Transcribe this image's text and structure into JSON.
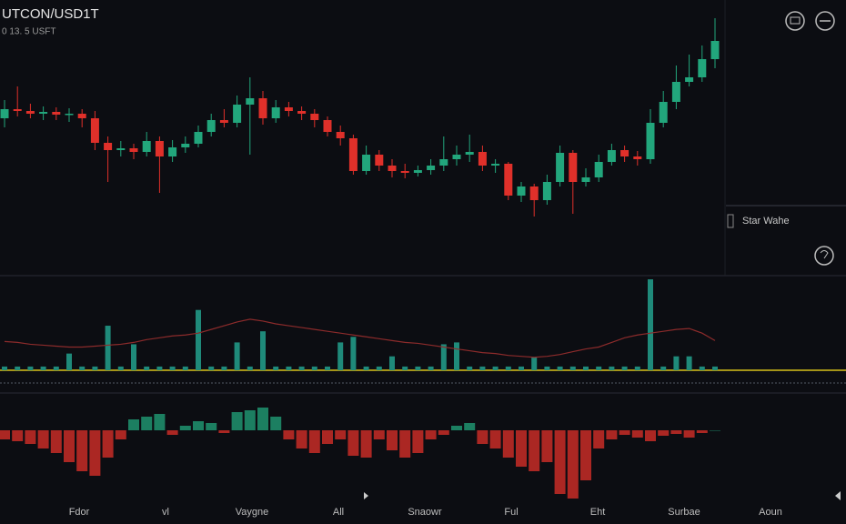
{
  "chart_data": {
    "type": "candlestick",
    "title": "UTCON/USD1T",
    "subtitle": "0 13. 5 USFT",
    "legend_label": "Star Wahe",
    "x_labels": [
      "Fdor",
      "vl",
      "Vaygne",
      "All",
      "Snaowr",
      "Ful",
      "Eht",
      "Surbae",
      "Aoun"
    ],
    "up_color": "#22a67c",
    "down_color": "#e0302a",
    "ylim": [
      0,
      300
    ],
    "open": [
      170,
      180,
      178,
      175,
      177,
      174,
      175,
      170,
      143,
      135,
      137,
      133,
      145,
      128,
      138,
      142,
      155,
      168,
      165,
      185,
      192,
      170,
      182,
      178,
      175,
      168,
      155,
      148,
      112,
      130,
      118,
      112,
      110,
      113,
      118,
      125,
      130,
      133,
      118,
      120,
      85,
      95,
      80,
      100,
      132,
      100,
      105,
      122,
      135,
      128,
      125,
      165,
      188,
      210,
      215,
      235
    ],
    "high": [
      190,
      205,
      186,
      183,
      182,
      181,
      180,
      178,
      150,
      145,
      142,
      155,
      150,
      146,
      150,
      162,
      175,
      180,
      195,
      215,
      200,
      190,
      188,
      183,
      180,
      172,
      162,
      152,
      140,
      135,
      125,
      120,
      118,
      125,
      150,
      140,
      152,
      140,
      125,
      122,
      100,
      98,
      108,
      140,
      135,
      115,
      130,
      142,
      140,
      134,
      180,
      200,
      228,
      240,
      250,
      280
    ],
    "low": [
      160,
      172,
      170,
      168,
      168,
      166,
      160,
      135,
      100,
      128,
      125,
      128,
      88,
      122,
      132,
      138,
      150,
      160,
      160,
      130,
      163,
      165,
      172,
      168,
      160,
      150,
      140,
      108,
      108,
      112,
      105,
      104,
      106,
      108,
      112,
      118,
      122,
      112,
      110,
      80,
      78,
      62,
      75,
      95,
      65,
      95,
      100,
      118,
      122,
      118,
      120,
      160,
      180,
      205,
      210,
      225
    ],
    "close": [
      180,
      178,
      175,
      177,
      174,
      175,
      170,
      143,
      135,
      137,
      133,
      145,
      128,
      138,
      142,
      155,
      168,
      165,
      185,
      192,
      170,
      182,
      178,
      175,
      168,
      155,
      148,
      112,
      130,
      118,
      112,
      110,
      113,
      118,
      125,
      130,
      133,
      118,
      120,
      85,
      95,
      80,
      100,
      132,
      100,
      105,
      122,
      135,
      128,
      125,
      165,
      188,
      210,
      215,
      235,
      255
    ],
    "volume_lim": [
      0,
      100
    ],
    "volume_color": "#1f8a7a",
    "volume": [
      4,
      4,
      4,
      4,
      4,
      18,
      4,
      4,
      48,
      4,
      28,
      4,
      4,
      4,
      4,
      65,
      4,
      4,
      30,
      4,
      42,
      4,
      4,
      4,
      4,
      4,
      30,
      36,
      4,
      4,
      15,
      4,
      4,
      4,
      28,
      30,
      4,
      4,
      4,
      4,
      4,
      14,
      4,
      4,
      4,
      4,
      4,
      4,
      4,
      4,
      98,
      4,
      15,
      15,
      4,
      4
    ],
    "volume_ma_color": "#8c2b2b",
    "volume_ma": [
      31,
      30,
      28,
      27,
      26,
      25,
      25,
      26,
      27,
      28,
      30,
      33,
      35,
      37,
      38,
      40,
      44,
      48,
      52,
      55,
      53,
      50,
      48,
      46,
      44,
      42,
      40,
      38,
      36,
      34,
      32,
      30,
      29,
      27,
      25,
      23,
      21,
      19,
      18,
      16,
      15,
      14,
      15,
      17,
      20,
      23,
      25,
      30,
      35,
      38,
      40,
      42,
      44,
      45,
      40,
      32
    ],
    "hist_lim": [
      -75,
      35
    ],
    "histogram": [
      -10,
      -12,
      -15,
      -20,
      -25,
      -35,
      -45,
      -50,
      -30,
      -10,
      12,
      15,
      18,
      -5,
      5,
      10,
      8,
      -3,
      20,
      22,
      25,
      15,
      -10,
      -20,
      -25,
      -15,
      -10,
      -28,
      -30,
      -10,
      -22,
      -30,
      -25,
      -10,
      -5,
      5,
      8,
      -15,
      -20,
      -30,
      -40,
      -45,
      -35,
      -70,
      -75,
      -55,
      -20,
      -10,
      -5,
      -8,
      -12,
      -6,
      -4,
      -8,
      -3,
      0
    ]
  }
}
